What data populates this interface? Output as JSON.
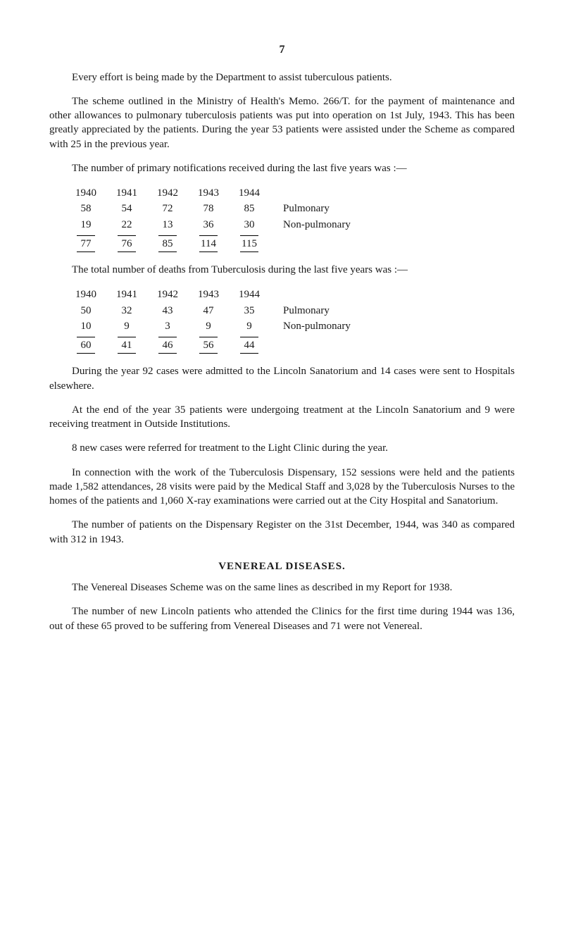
{
  "page_number": "7",
  "para1": "Every effort is being made by the Department to assist tuberculous patients.",
  "para2": "The scheme outlined in the Ministry of Health's Memo. 266/T. for the payment of maintenance and other allowances to pulmonary tuberculosis patients was put into operation on 1st July, 1943. This has been greatly appreciated by the patients. During the year 53 patients were assisted under the Scheme as compared with 25 in the previous year.",
  "para3": "The number of primary notifications received during the last five years was :—",
  "notifications": {
    "years": [
      "1940",
      "1941",
      "1942",
      "1943",
      "1944"
    ],
    "rows": [
      {
        "values": [
          "58",
          "54",
          "72",
          "78",
          "85"
        ],
        "label": "Pulmonary"
      },
      {
        "values": [
          "19",
          "22",
          "13",
          "36",
          "30"
        ],
        "label": "Non-pulmonary"
      }
    ],
    "totals": [
      "77",
      "76",
      "85",
      "114",
      "115"
    ]
  },
  "para4": "The total number of deaths from Tuberculosis during the last five years was :—",
  "deaths": {
    "years": [
      "1940",
      "1941",
      "1942",
      "1943",
      "1944"
    ],
    "rows": [
      {
        "values": [
          "50",
          "32",
          "43",
          "47",
          "35"
        ],
        "label": "Pulmonary"
      },
      {
        "values": [
          "10",
          "9",
          "3",
          "9",
          "9"
        ],
        "label": "Non-pulmonary"
      }
    ],
    "totals": [
      "60",
      "41",
      "46",
      "56",
      "44"
    ]
  },
  "para5": "During the year 92 cases were admitted to the Lincoln Sanatorium and 14 cases were sent to Hospitals elsewhere.",
  "para6": "At the end of the year 35 patients were undergoing treatment at the Lincoln Sanatorium and 9 were receiving treatment in Outside Institutions.",
  "para7": "8 new cases were referred for treatment to the Light Clinic during the year.",
  "para8": "In connection with the work of the Tuberculosis Dispensary, 152 sessions were held and the patients made 1,582 attendances, 28 visits were paid by the Medical Staff and 3,028 by the Tuberculosis Nurses to the homes of the patients and 1,060 X-ray examinations were carried out at the City Hospital and Sanatorium.",
  "para9": "The number of patients on the Dispensary Register on the 31st December, 1944, was 340 as compared with 312 in 1943.",
  "vd_title": "VENEREAL DISEASES.",
  "para10": "The Venereal Diseases Scheme was on the same lines as described in my Report for 1938.",
  "para11": "The number of new Lincoln patients who attended the Clinics for the first time during 1944 was 136, out of these 65 proved to be suffering from Venereal Diseases and 71 were not Venereal."
}
